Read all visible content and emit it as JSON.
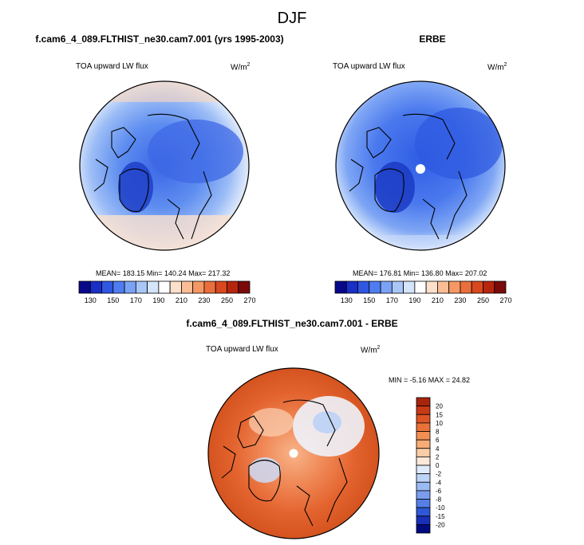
{
  "figure": {
    "title": "DJF",
    "left_title": "f.cam6_4_089.FLTHIST_ne30.cam7.001 (yrs 1995-2003)",
    "right_title": "ERBE",
    "diff_title": "f.cam6_4_089.FLTHIST_ne30.cam7.001 - ERBE",
    "variable": "TOA upward LW flux",
    "units_base": "W/m",
    "units_exp": "2"
  },
  "chart_data": [
    {
      "type": "heatmap",
      "projection": "north polar stereographic",
      "title": "f.cam6_4_089.FLTHIST_ne30.cam7.001 (yrs 1995-2003)",
      "variable": "TOA upward LW flux",
      "units": "W/m2",
      "stats": {
        "mean": 183.15,
        "min": 140.24,
        "max": 217.32
      },
      "stats_label": "MEAN= 183.15  Min= 140.24  Max= 217.32",
      "colorbar_ticks": [
        "130",
        "150",
        "170",
        "190",
        "210",
        "230",
        "250",
        "270"
      ],
      "colorbar_colors": [
        "#08088a",
        "#1a2fc8",
        "#2f57e2",
        "#4f7df0",
        "#7aa3f5",
        "#a8c6f8",
        "#d3e4fb",
        "#ffffff",
        "#fde0cc",
        "#fbbd96",
        "#f69863",
        "#ea6f3a",
        "#d9481e",
        "#b8250f",
        "#7a0a0a"
      ]
    },
    {
      "type": "heatmap",
      "projection": "north polar stereographic",
      "title": "ERBE",
      "variable": "TOA upward LW flux",
      "units": "W/m2",
      "stats": {
        "mean": 176.81,
        "min": 136.8,
        "max": 207.02
      },
      "stats_label": "MEAN= 176.81  Min= 136.80  Max= 207.02",
      "colorbar_ticks": [
        "130",
        "150",
        "170",
        "190",
        "210",
        "230",
        "250",
        "270"
      ]
    },
    {
      "type": "heatmap",
      "projection": "north polar stereographic",
      "title": "f.cam6_4_089.FLTHIST_ne30.cam7.001 - ERBE",
      "variable": "TOA upward LW flux",
      "units": "W/m2",
      "stats": {
        "min": -5.16,
        "max": 24.82
      },
      "stats_label": "MIN =  -5.16 MAX =  24.82",
      "colorbar_ticks": [
        "20",
        "15",
        "10",
        "8",
        "6",
        "4",
        "2",
        "0",
        "-2",
        "-4",
        "-6",
        "-8",
        "-10",
        "-15",
        "-20"
      ],
      "colorbar_colors": [
        "#a8250d",
        "#c83a16",
        "#dd5524",
        "#ea7238",
        "#f48f53",
        "#f8ad77",
        "#fbcda5",
        "#fde9d9",
        "#dfeafc",
        "#bdd3f7",
        "#9bbaf2",
        "#7a9ded",
        "#557fe6",
        "#2f58d8",
        "#1a2fb8",
        "#000a80"
      ]
    }
  ]
}
